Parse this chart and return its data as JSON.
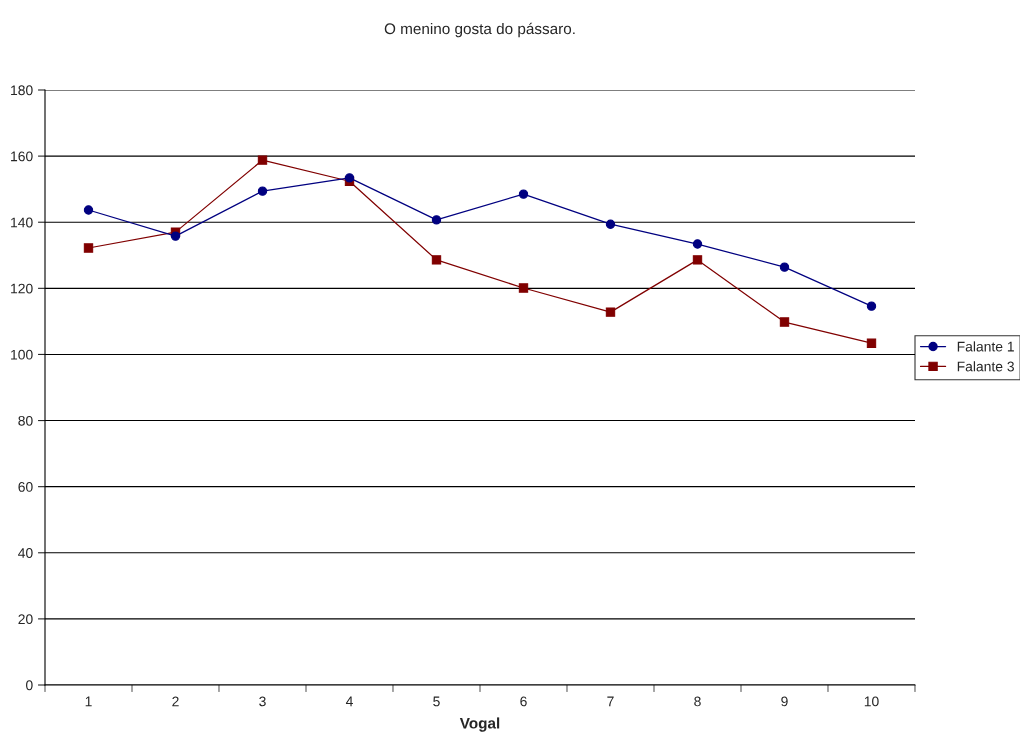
{
  "chart_data": {
    "type": "line",
    "title": "O menino gosta do pássaro.",
    "xlabel": "Vogal",
    "categories": [
      "1",
      "2",
      "3",
      "4",
      "5",
      "6",
      "7",
      "8",
      "9",
      "10"
    ],
    "series": [
      {
        "name": "Falante 1",
        "color": "#000080",
        "marker": "circle",
        "values": [
          143.7,
          135.8,
          149.4,
          153.4,
          140.7,
          148.5,
          139.4,
          133.4,
          126.4,
          114.6
        ]
      },
      {
        "name": "Falante 3",
        "color": "#800000",
        "marker": "square",
        "values": [
          132.2,
          137.0,
          158.8,
          152.4,
          128.6,
          120.1,
          112.8,
          128.6,
          109.8,
          103.4
        ]
      }
    ],
    "ylim": [
      0,
      180
    ],
    "yticks": [
      0,
      20,
      40,
      60,
      80,
      100,
      120,
      140,
      160,
      180
    ],
    "grid": "y",
    "legend": "right"
  }
}
